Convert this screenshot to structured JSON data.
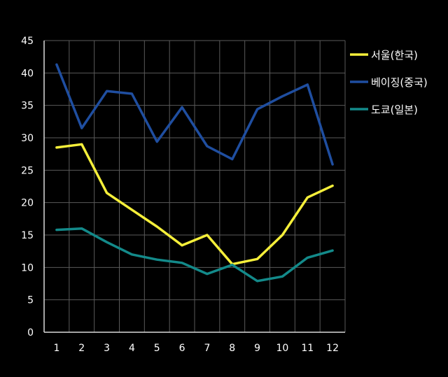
{
  "chart_data": {
    "type": "line",
    "categories": [
      "1",
      "2",
      "3",
      "4",
      "5",
      "6",
      "7",
      "8",
      "9",
      "10",
      "11",
      "12"
    ],
    "ylim": [
      0,
      45
    ],
    "yticks": [
      0,
      5,
      10,
      15,
      20,
      25,
      30,
      35,
      40,
      45
    ],
    "grid": true,
    "legend_position": "right",
    "series": [
      {
        "name": "서울(한국)",
        "color": "#f5ef3a",
        "values": [
          28.5,
          29.0,
          21.5,
          18.9,
          16.3,
          13.4,
          15.0,
          10.5,
          11.3,
          15.0,
          20.8,
          22.6
        ]
      },
      {
        "name": "베이징(중국)",
        "color": "#1f4ea0",
        "values": [
          41.3,
          31.5,
          37.2,
          36.8,
          29.4,
          34.7,
          28.7,
          26.7,
          34.4,
          36.4,
          38.2,
          25.9
        ]
      },
      {
        "name": "도쿄(일본)",
        "color": "#138a8a",
        "values": [
          15.8,
          16.0,
          13.9,
          12.0,
          11.2,
          10.7,
          9.0,
          10.4,
          7.9,
          8.6,
          11.5,
          12.6
        ]
      }
    ]
  }
}
